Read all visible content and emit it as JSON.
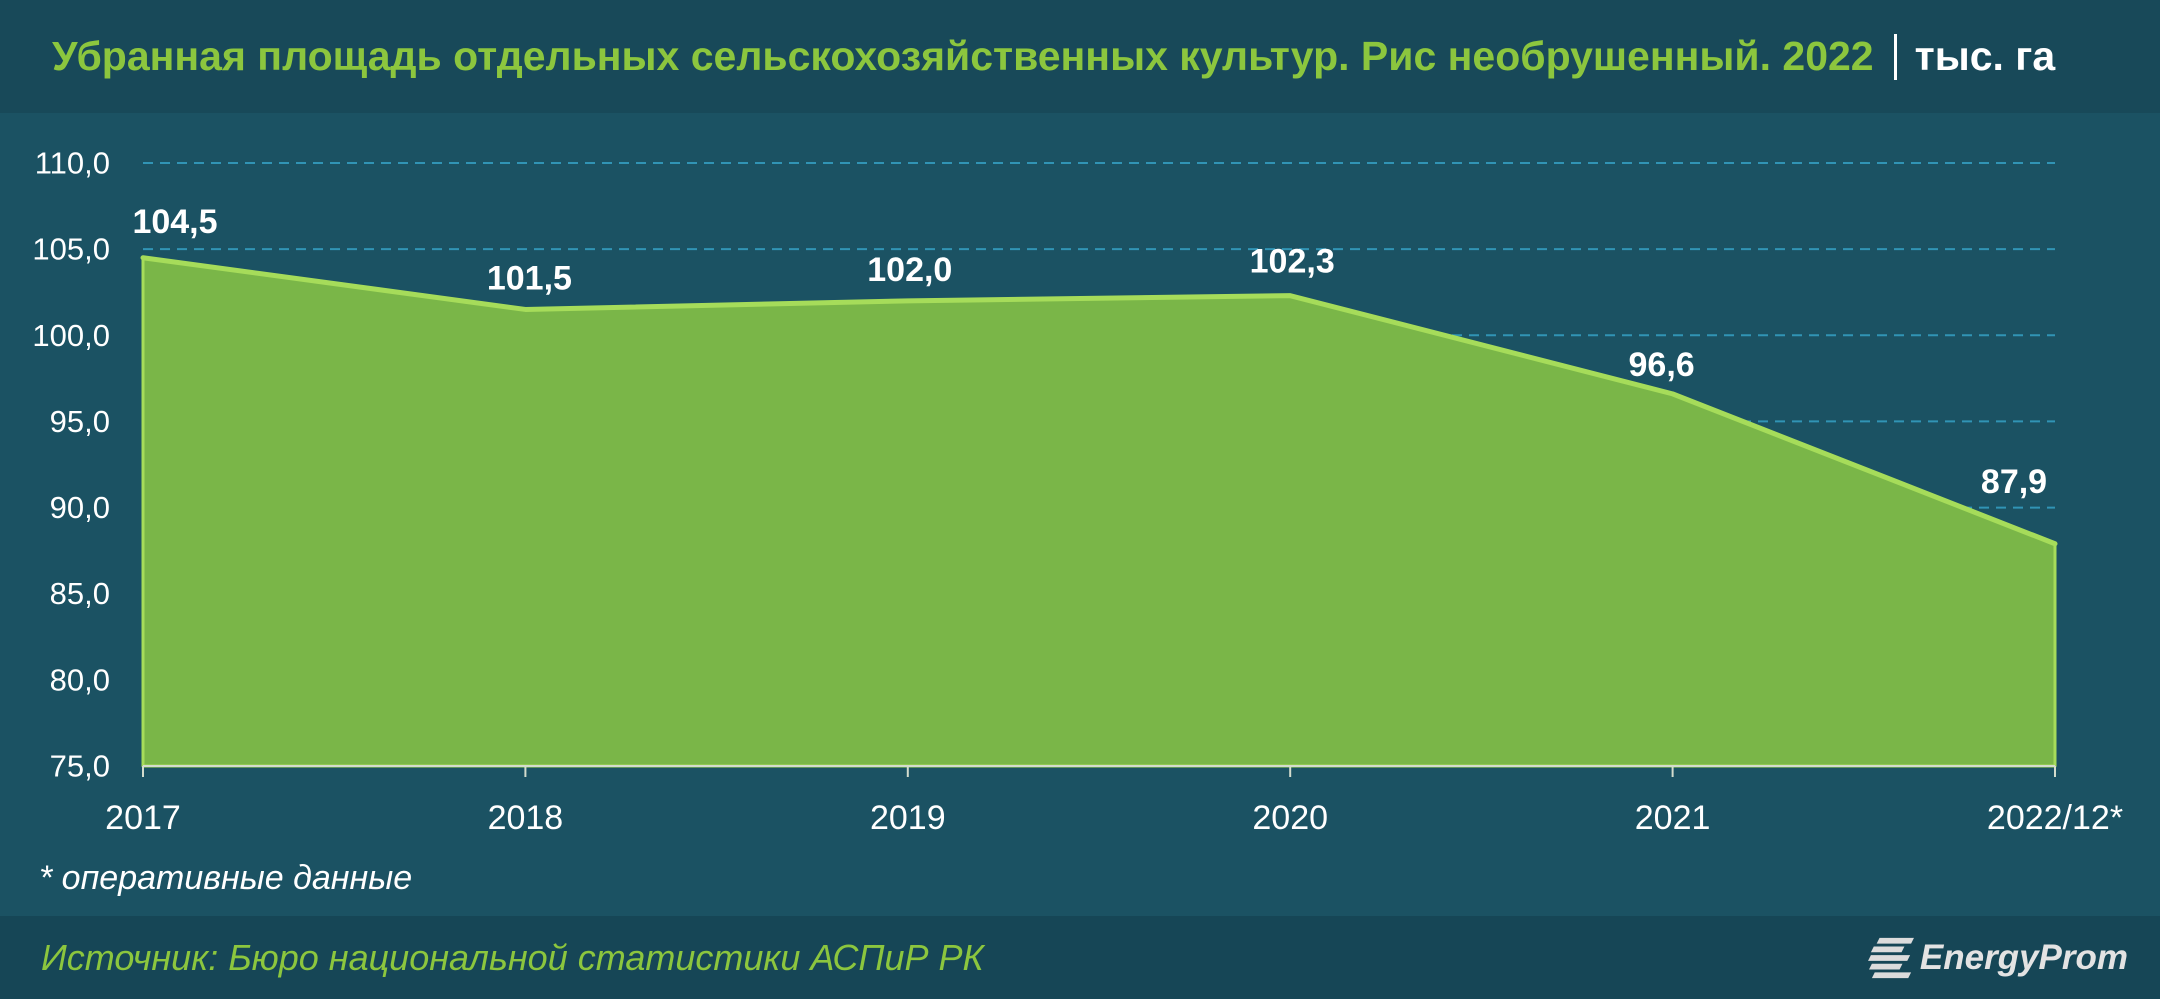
{
  "chart_data": {
    "type": "area",
    "title": "Убранная площадь отдельных сельскохозяйственных культур. Рис необрушенный. 2022",
    "unit": "тыс. га",
    "categories": [
      "2017",
      "2018",
      "2019",
      "2020",
      "2021",
      "2022/12*"
    ],
    "values": [
      104.5,
      101.5,
      102.0,
      102.3,
      96.6,
      87.9
    ],
    "data_labels": [
      "104,5",
      "101,5",
      "102,0",
      "102,3",
      "96,6",
      "87,9"
    ],
    "ylim": [
      75,
      110
    ],
    "yticks": [
      75,
      80,
      85,
      90,
      95,
      100,
      105,
      110
    ],
    "ytick_labels": [
      "75,0",
      "80,0",
      "85,0",
      "90,0",
      "95,0",
      "100,0",
      "105,0",
      "110,0"
    ],
    "grid": true,
    "footnote": "* оперативные данные"
  },
  "footer": {
    "source": "Источник: Бюро национальной статистики АСПиР РК",
    "logo_text": "EnergyProm",
    "logo_icon": "energyprom-logo-icon"
  },
  "colors": {
    "header_bg": "#184959",
    "plot_bg": "#1b5263",
    "footer_bg": "#164656",
    "title": "#8cc63e",
    "unit": "#ffffff",
    "area_fill": "#7ab648",
    "area_line": "#a6dc5a",
    "gridline": "#3194b5",
    "axis_line": "#d4dccd",
    "axis_text": "#ffffff",
    "data_label": "#ffffff",
    "source": "#8cc63e"
  }
}
